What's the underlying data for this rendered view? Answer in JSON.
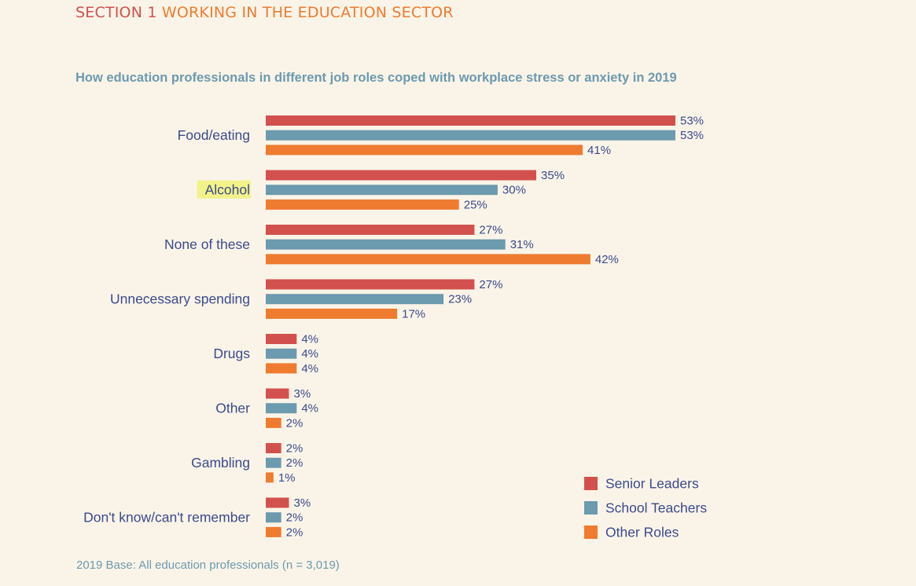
{
  "header": {
    "section_number": "SECTION 1",
    "section_title": "WORKING IN THE EDUCATION SECTOR"
  },
  "footnote": "2019 Base: All education professionals (n = 3,019)",
  "chart_data": {
    "type": "bar",
    "orientation": "horizontal",
    "title": "How education professionals in different job roles coped with workplace stress or anxiety in 2019",
    "xlabel": "",
    "ylabel": "",
    "value_suffix": "%",
    "categories": [
      "Food/eating",
      "Alcohol",
      "None of these",
      "Unnecessary spending",
      "Drugs",
      "Other",
      "Gambling",
      "Don't know/can't remember"
    ],
    "highlighted_category": "Alcohol",
    "highlight_color": "#f2f28a",
    "series": [
      {
        "name": "Senior Leaders",
        "color": "#d2514e",
        "values": [
          53,
          35,
          27,
          27,
          4,
          3,
          2,
          3
        ]
      },
      {
        "name": "School Teachers",
        "color": "#6c9aae",
        "values": [
          53,
          30,
          31,
          23,
          4,
          4,
          2,
          2
        ]
      },
      {
        "name": "Other Roles",
        "color": "#ee7b30",
        "values": [
          41,
          25,
          42,
          17,
          4,
          2,
          1,
          2
        ]
      }
    ],
    "legend_position": "bottom-right",
    "grid": false,
    "axis_visible": false,
    "text_color": "#3b4a8c"
  }
}
